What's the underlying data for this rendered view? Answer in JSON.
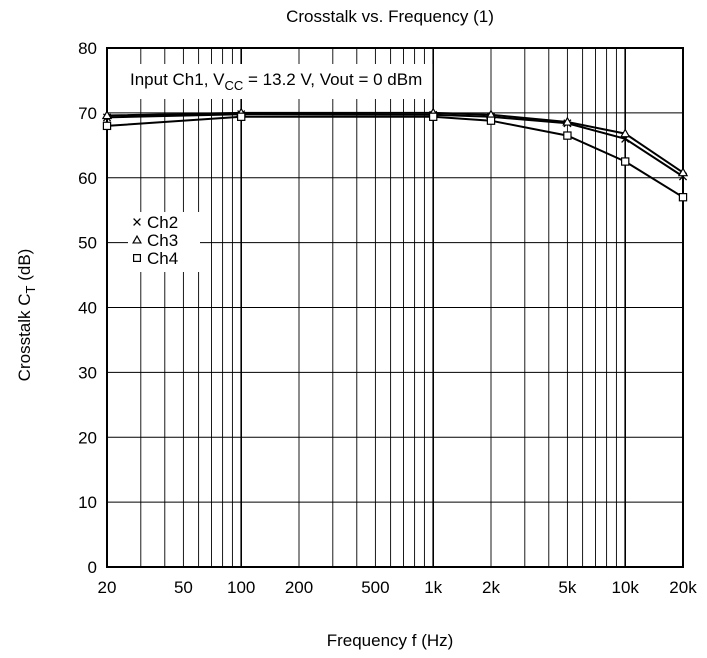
{
  "chart_data": {
    "type": "line",
    "title": "Crosstalk vs. Frequency (1)",
    "xlabel": "Frequency  f  (Hz)",
    "ylabel_main": "Crosstalk  C",
    "ylabel_sub": "T",
    "ylabel_unit": "  (dB)",
    "x_scale": "log",
    "xlim": [
      20,
      20000
    ],
    "ylim": [
      0,
      80
    ],
    "grid": true,
    "x_ticks": [
      {
        "value": 20,
        "label": "20"
      },
      {
        "value": 50,
        "label": "50"
      },
      {
        "value": 100,
        "label": "100"
      },
      {
        "value": 200,
        "label": "200"
      },
      {
        "value": 500,
        "label": "500"
      },
      {
        "value": 1000,
        "label": "1k"
      },
      {
        "value": 2000,
        "label": "2k"
      },
      {
        "value": 5000,
        "label": "5k"
      },
      {
        "value": 10000,
        "label": "10k"
      },
      {
        "value": 20000,
        "label": "20k"
      }
    ],
    "y_ticks": [
      0,
      10,
      20,
      30,
      40,
      50,
      60,
      70,
      80
    ],
    "annotation": {
      "prefix": "Input Ch1, V",
      "sub": "CC",
      "suffix": " = 13.2 V, Vout = 0 dBm"
    },
    "legend_position": "left, mid-height",
    "x": [
      20,
      100,
      1000,
      2000,
      5000,
      10000,
      20000
    ],
    "series": [
      {
        "name": "Ch2",
        "marker": "×",
        "values": [
          69.3,
          69.8,
          69.7,
          69.4,
          68.4,
          66.0,
          60.2
        ]
      },
      {
        "name": "Ch3",
        "marker": "△",
        "values": [
          69.6,
          70.0,
          70.0,
          69.7,
          68.6,
          66.8,
          60.8
        ]
      },
      {
        "name": "Ch4",
        "marker": "□",
        "values": [
          68.0,
          69.4,
          69.4,
          68.8,
          66.5,
          62.5,
          57.0
        ]
      }
    ]
  }
}
